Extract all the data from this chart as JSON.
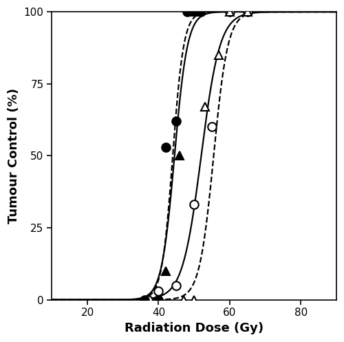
{
  "title": "",
  "xlabel": "Radiation Dose (Gy)",
  "ylabel": "Tumour Control (%)",
  "xlim": [
    10,
    90
  ],
  "ylim": [
    0,
    100
  ],
  "xticks": [
    20,
    40,
    60,
    80
  ],
  "yticks": [
    0,
    25,
    50,
    75,
    100
  ],
  "background_color": "#ffffff",
  "series": [
    {
      "name": "open_circle",
      "x": [
        37,
        40,
        45,
        50,
        55,
        60,
        65
      ],
      "y": [
        0,
        3,
        5,
        33,
        60,
        100,
        100
      ],
      "marker": "o",
      "fillstyle": "none",
      "linestyle": "solid",
      "linewidth": 1.6
    },
    {
      "name": "filled_circle",
      "x": [
        36,
        40,
        42,
        45,
        48,
        52
      ],
      "y": [
        0,
        0,
        53,
        62,
        100,
        100
      ],
      "marker": "o",
      "fillstyle": "full",
      "linestyle": "solid",
      "linewidth": 1.6
    },
    {
      "name": "open_triangle",
      "x": [
        47,
        50,
        53,
        57,
        60,
        65
      ],
      "y": [
        0,
        0,
        67,
        85,
        100,
        100
      ],
      "marker": "^",
      "fillstyle": "none",
      "linestyle": "dashed",
      "linewidth": 1.6
    },
    {
      "name": "filled_triangle",
      "x": [
        36,
        40,
        42,
        46,
        50
      ],
      "y": [
        0,
        0,
        10,
        50,
        100
      ],
      "marker": "^",
      "fillstyle": "full",
      "linestyle": "dashed",
      "linewidth": 1.6
    }
  ],
  "logit_curves": [
    {
      "name": "open_circle_fit",
      "linestyle": "solid",
      "linewidth": 1.6,
      "x50": 52.0,
      "slope": 0.38
    },
    {
      "name": "filled_circle_fit",
      "linestyle": "solid",
      "linewidth": 1.6,
      "x50": 44.5,
      "slope": 0.55
    },
    {
      "name": "open_triangle_fit",
      "linestyle": "dashed",
      "linewidth": 1.6,
      "x50": 55.5,
      "slope": 0.5
    },
    {
      "name": "filled_triangle_fit",
      "linestyle": "dashed",
      "linewidth": 1.6,
      "x50": 44.0,
      "slope": 0.65
    }
  ],
  "markersize": 9,
  "markeredgewidth": 1.5
}
